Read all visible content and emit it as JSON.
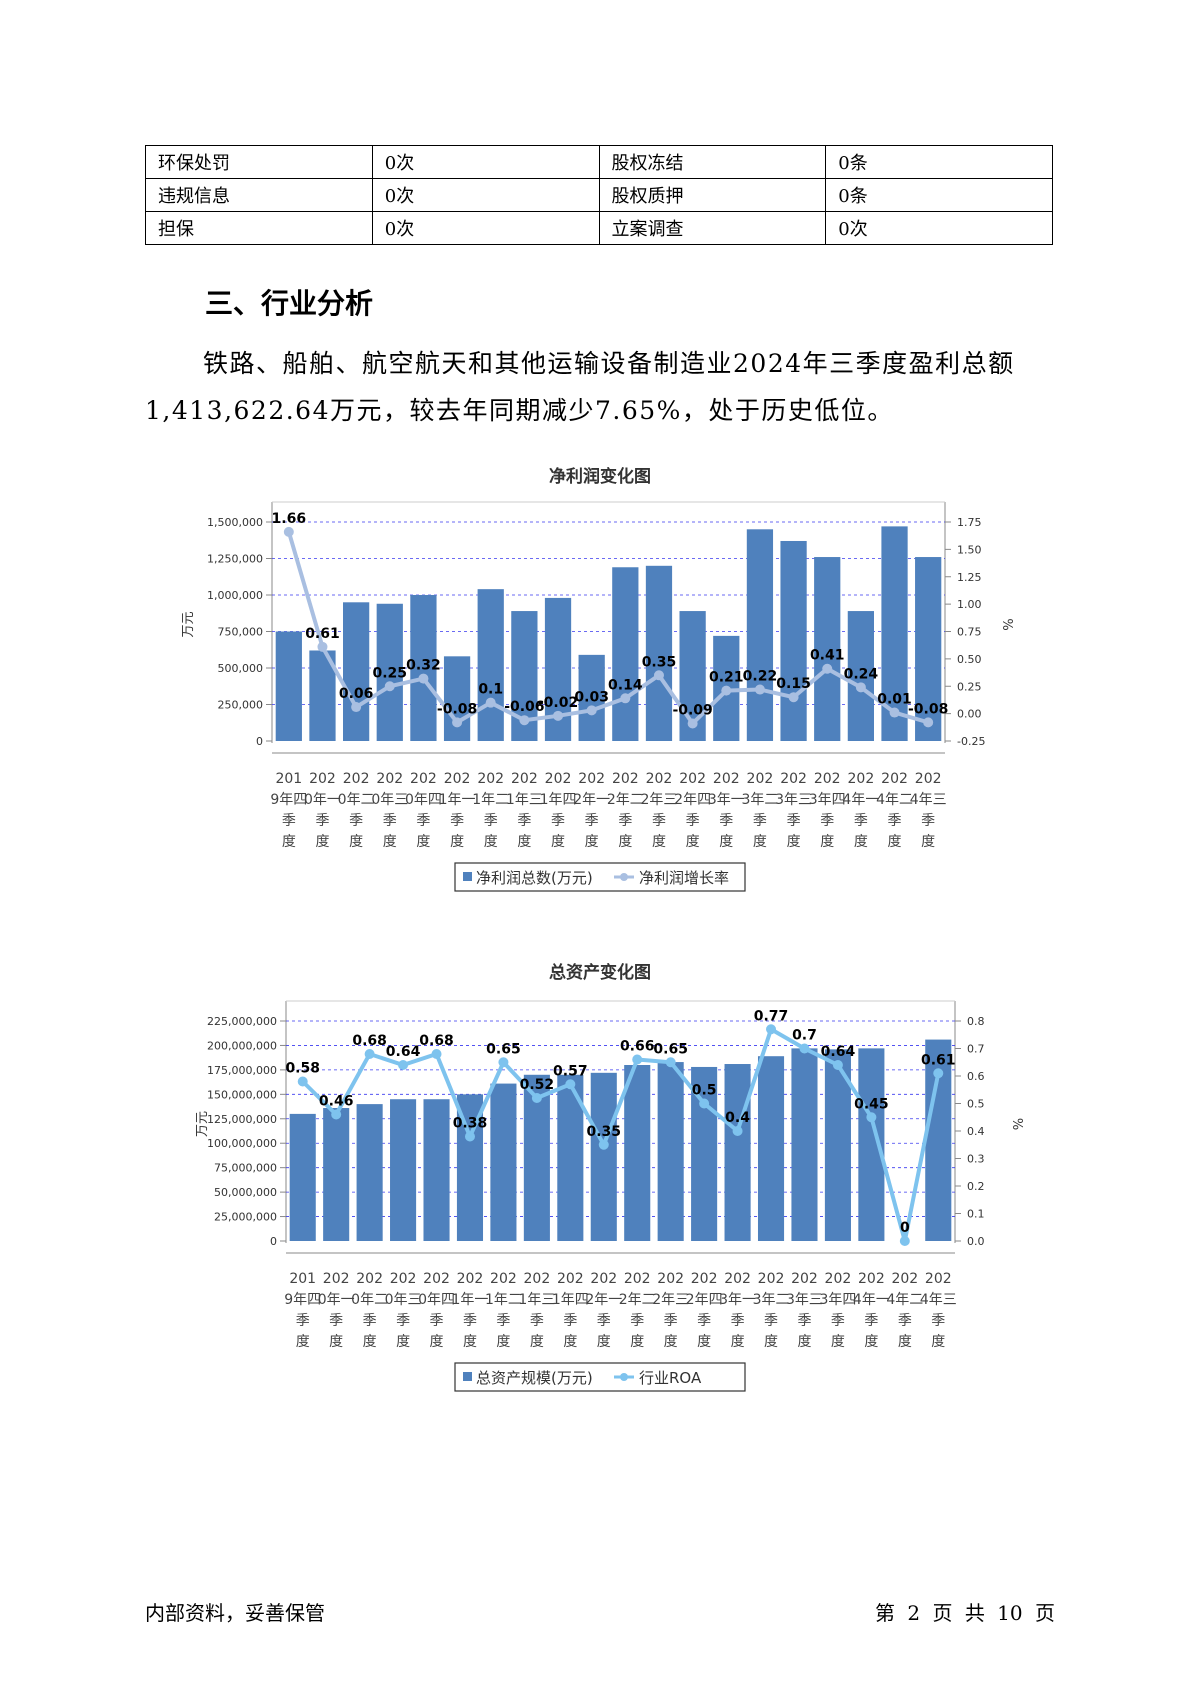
{
  "table": {
    "rows": [
      [
        "环保处罚",
        "0次",
        "股权冻结",
        "0条"
      ],
      [
        "违规信息",
        "0次",
        "股权质押",
        "0条"
      ],
      [
        "担保",
        "0次",
        "立案调查",
        "0次"
      ]
    ]
  },
  "section": {
    "heading": "三、行业分析",
    "paragraph": "铁路、船舶、航空航天和其他运输设备制造业2024年三季度盈利总额1,413,622.64万元，较去年同期减少7.65%，处于历史低位。"
  },
  "chart_data": [
    {
      "type": "bar",
      "title": "净利润变化图",
      "ylabel": "万元",
      "y2label": "%",
      "ylim": [
        0,
        1500000
      ],
      "y2lim": [
        -0.25,
        1.75
      ],
      "yticks": [
        "1,500,000",
        "1,250,000",
        "1,000,000",
        "750,000",
        "500,000",
        "250,000",
        "0"
      ],
      "y2ticks": [
        "1.75",
        "1.50",
        "1.25",
        "1.00",
        "0.75",
        "0.50",
        "0.25",
        "0.00",
        "-0.25"
      ],
      "categories": [
        "2019年四季度",
        "2020年一季度",
        "2020年二季度",
        "2020年三季度",
        "2020年四季度",
        "2021年一季度",
        "2021年二季度",
        "2021年三季度",
        "2021年四季度",
        "2022年一季度",
        "2022年二季度",
        "2022年三季度",
        "2022年四季度",
        "2023年一季度",
        "2023年二季度",
        "2023年三季度",
        "2023年四季度",
        "2024年一季度",
        "2024年二季度",
        "2024年三季度"
      ],
      "series": [
        {
          "name": "净利润总数(万元)",
          "kind": "bar",
          "color": "#4f81bd",
          "values": [
            750000,
            620000,
            950000,
            940000,
            1000000,
            580000,
            1040000,
            890000,
            980000,
            590000,
            1190000,
            1200000,
            890000,
            720000,
            1450000,
            1370000,
            1260000,
            890000,
            1470000,
            1260000
          ]
        },
        {
          "name": "净利润增长率",
          "kind": "line",
          "color": "#a9bfe1",
          "values": [
            1.66,
            0.61,
            0.06,
            0.25,
            0.32,
            -0.08,
            0.1,
            -0.06,
            -0.02,
            0.03,
            0.14,
            0.35,
            -0.09,
            0.21,
            0.22,
            0.15,
            0.41,
            0.24,
            0.01,
            -0.08
          ]
        }
      ],
      "legend": "bottom",
      "grid": true
    },
    {
      "type": "bar",
      "title": "总资产变化图",
      "ylabel": "万元",
      "y2label": "%",
      "ylim": [
        0,
        225000000
      ],
      "y2lim": [
        0,
        0.8
      ],
      "yticks": [
        "225,000,000",
        "200,000,000",
        "175,000,000",
        "150,000,000",
        "125,000,000",
        "100,000,000",
        "75,000,000",
        "50,000,000",
        "25,000,000",
        "0"
      ],
      "y2ticks": [
        "0.8",
        "0.7",
        "0.6",
        "0.5",
        "0.4",
        "0.3",
        "0.2",
        "0.1",
        "0.0"
      ],
      "categories": [
        "2019年四季度",
        "2020年一季度",
        "2020年二季度",
        "2020年三季度",
        "2020年四季度",
        "2021年一季度",
        "2021年二季度",
        "2021年三季度",
        "2021年四季度",
        "2022年一季度",
        "2022年二季度",
        "2022年三季度",
        "2022年四季度",
        "2023年一季度",
        "2023年二季度",
        "2023年三季度",
        "2023年四季度",
        "2024年一季度",
        "2024年二季度",
        "2024年三季度"
      ],
      "series": [
        {
          "name": "总资产规模(万元)",
          "kind": "bar",
          "color": "#4f81bd",
          "values": [
            130000000,
            136000000,
            140000000,
            145000000,
            145000000,
            150000000,
            161000000,
            170000000,
            170000000,
            172000000,
            180000000,
            183000000,
            178000000,
            181000000,
            189000000,
            197000000,
            196000000,
            197000000,
            0,
            206000000
          ]
        },
        {
          "name": "行业ROA",
          "kind": "line",
          "color": "#7ec3ee",
          "values": [
            0.58,
            0.46,
            0.68,
            0.64,
            0.68,
            0.38,
            0.65,
            0.52,
            0.57,
            0.35,
            0.66,
            0.65,
            0.5,
            0.4,
            0.77,
            0.7,
            0.64,
            0.45,
            0,
            0.61
          ]
        }
      ],
      "legend": "bottom",
      "grid": true
    }
  ],
  "footer": {
    "left": "内部资料，妥善保管",
    "right": "第 2 页  共 10 页"
  }
}
